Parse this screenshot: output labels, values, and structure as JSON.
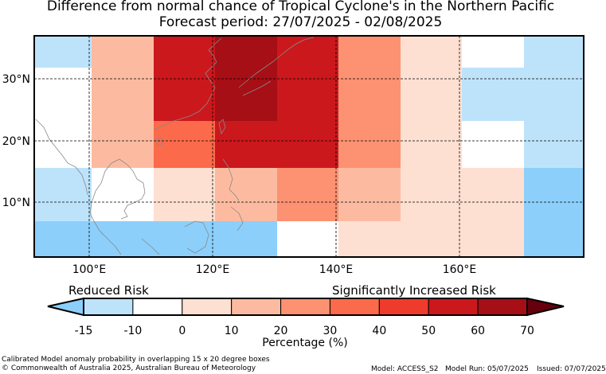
{
  "title": "Difference from normal chance of Tropical Cyclone's in the Northern Pacific",
  "subtitle": "Forecast period: 27/07/2025 - 02/08/2025",
  "map": {
    "lat_ticks": [
      "30°N",
      "20°N",
      "10°N"
    ],
    "lon_ticks": [
      "100°E",
      "120°E",
      "140°E",
      "160°E"
    ]
  },
  "legend": {
    "low_label": "Reduced Risk",
    "high_label": "Significantly Increased Risk",
    "ticks": [
      "-15",
      "-10",
      "0",
      "10",
      "20",
      "30",
      "40",
      "50",
      "60",
      "70"
    ],
    "colors": [
      "#bde3fb",
      "#ffffff",
      "#fee0d2",
      "#fcbba1",
      "#fc9272",
      "#fb6a4a",
      "#ef3b2c",
      "#cb181d",
      "#a50f15"
    ],
    "under_color": "#8ccffb",
    "over_color": "#67000d",
    "xlabel": "Percentage (%)"
  },
  "footer": {
    "description": "Calibrated Model anomaly probability in overlapping 15 x 20 degree boxes",
    "copyright": "© Commonwealth of Australia 2025, Australian Bureau of Meteorology",
    "model": "Model: ACCESS_S2",
    "model_run": "Model Run: 05/07/2025",
    "issued": "Issued: 07/07/2025"
  }
}
